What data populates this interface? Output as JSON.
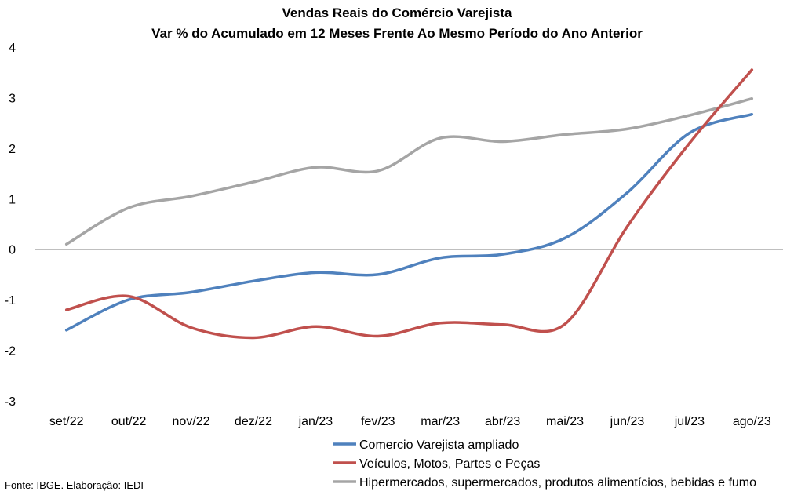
{
  "chart_data": {
    "type": "line",
    "title": "Vendas Reais do Comércio Varejista",
    "subtitle": "Var % do Acumulado  em 12 Meses Frente Ao Mesmo Período do Ano Anterior",
    "xlabel": "",
    "ylabel": "",
    "ylim": [
      -3,
      4
    ],
    "yticks": [
      "4",
      "3",
      "2",
      "1",
      "0",
      "-1",
      "-2",
      "-3"
    ],
    "grid": false,
    "legend_position": "bottom-right",
    "categories": [
      "set/22",
      "out/22",
      "nov/22",
      "dez/22",
      "jan/23",
      "fev/23",
      "mar/23",
      "abr/23",
      "mai/23",
      "jun/23",
      "jul/23",
      "ago/23"
    ],
    "series": [
      {
        "name": "Comercio Varejista ampliado",
        "color": "#4f81bd",
        "values": [
          -1.6,
          -1.0,
          -0.85,
          -0.63,
          -0.46,
          -0.5,
          -0.17,
          -0.1,
          0.22,
          1.12,
          2.3,
          2.67
        ]
      },
      {
        "name": "Veículos, Motos, Partes e Peças",
        "color": "#c0504d",
        "values": [
          -1.2,
          -0.93,
          -1.55,
          -1.75,
          -1.53,
          -1.72,
          -1.46,
          -1.49,
          -1.48,
          0.45,
          2.1,
          3.55
        ]
      },
      {
        "name": "Hipermercados, supermercados, produtos alimentícios, bebidas e fumo",
        "color": "#a5a5a5",
        "values": [
          0.1,
          0.82,
          1.05,
          1.33,
          1.62,
          1.55,
          2.2,
          2.13,
          2.27,
          2.38,
          2.65,
          2.98
        ]
      }
    ]
  },
  "source": "Fonte: IBGE. Elaboração: IEDI"
}
